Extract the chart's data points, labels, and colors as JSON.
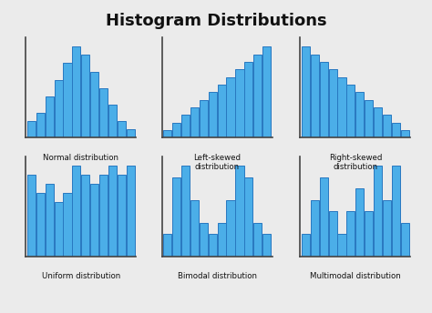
{
  "title": "Histogram Distributions",
  "title_fontsize": 13,
  "bar_color": "#4baee8",
  "bar_edge_color": "#2878c0",
  "background_color": "#ebebeb",
  "subplots": [
    {
      "label": "Normal distribution",
      "values": [
        2,
        3,
        5,
        7,
        9,
        11,
        10,
        8,
        6,
        4,
        2,
        1
      ]
    },
    {
      "label": "Left-skewed\ndistribution",
      "values": [
        1,
        2,
        3,
        4,
        5,
        6,
        7,
        8,
        9,
        10,
        11,
        12
      ]
    },
    {
      "label": "Right-skewed\ndistribution",
      "values": [
        12,
        11,
        10,
        9,
        8,
        7,
        6,
        5,
        4,
        3,
        2,
        1
      ]
    },
    {
      "label": "Uniform distribution",
      "values": [
        9,
        7,
        8,
        6,
        7,
        10,
        9,
        8,
        9,
        10,
        9,
        10
      ]
    },
    {
      "label": "Bimodal distribution",
      "values": [
        2,
        7,
        8,
        5,
        3,
        2,
        3,
        5,
        8,
        7,
        3,
        2
      ]
    },
    {
      "label": "Multimodal distribution",
      "values": [
        2,
        5,
        7,
        4,
        2,
        4,
        6,
        4,
        8,
        5,
        8,
        3
      ]
    }
  ]
}
